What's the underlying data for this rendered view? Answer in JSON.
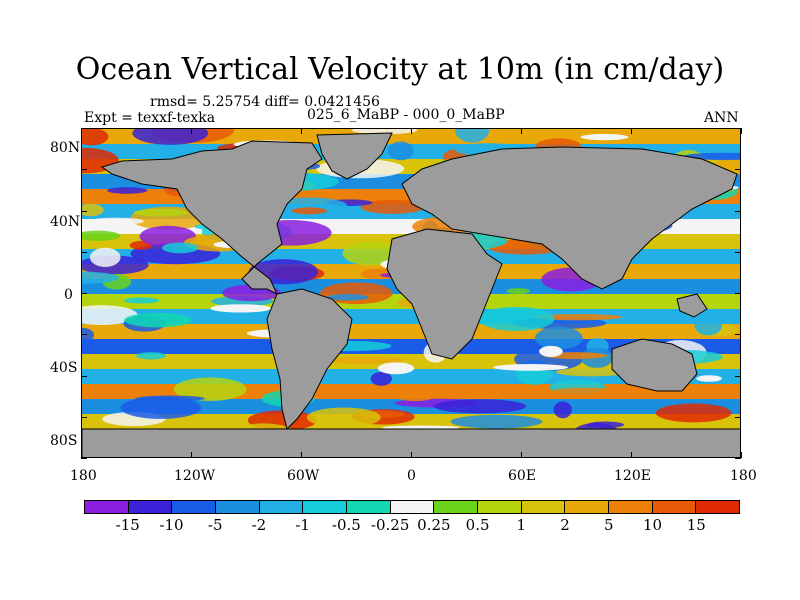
{
  "title": "Ocean Vertical Velocity at 10m (in cm/day)",
  "stats": "rmsd= 5.25754 diff= 0.0421456",
  "subtitle_left": "Expt = texxf-texka",
  "subtitle_center": "025_6_MaBP - 000_0_MaBP",
  "subtitle_right": "ANN",
  "lat_labels": [
    "80N",
    "40N",
    "0",
    "40S",
    "80S"
  ],
  "lon_labels": [
    "180",
    "120W",
    "60W",
    "0",
    "60E",
    "120E",
    "180"
  ],
  "colorbar": {
    "labels": [
      "-15",
      "-10",
      "-5",
      "-2",
      "-1",
      "-0.5",
      "-0.25",
      "0.25",
      "0.5",
      "1",
      "2",
      "5",
      "10",
      "15"
    ],
    "colors": [
      "#8a1fe0",
      "#3a22d8",
      "#1a5ce8",
      "#1c8ee0",
      "#22b0e6",
      "#15cdd8",
      "#12d8b2",
      "#f4f4f4",
      "#6ad21a",
      "#b6d40e",
      "#d8c20a",
      "#e8a80a",
      "#ec8008",
      "#e85a06",
      "#e02a04"
    ]
  },
  "colors": {
    "land": "#9c9c9c",
    "ocean_base": "#27b5e4",
    "coast": "#000000"
  }
}
